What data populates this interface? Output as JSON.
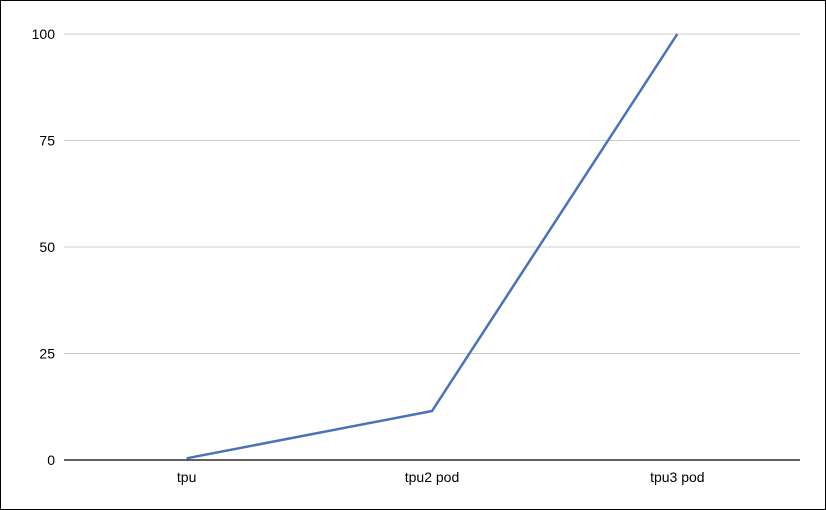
{
  "chart_data": {
    "type": "line",
    "categories": [
      "tpu",
      "tpu2 pod",
      "tpu3 pod"
    ],
    "series": [
      {
        "values": [
          0.4,
          11.5,
          100
        ]
      }
    ],
    "y_ticks": [
      0,
      25,
      50,
      75,
      100
    ],
    "ylim": [
      0,
      100
    ],
    "grid": true,
    "colors": {
      "line": "#4a72b8",
      "grid": "#cccccc",
      "axis": "#000000"
    }
  }
}
